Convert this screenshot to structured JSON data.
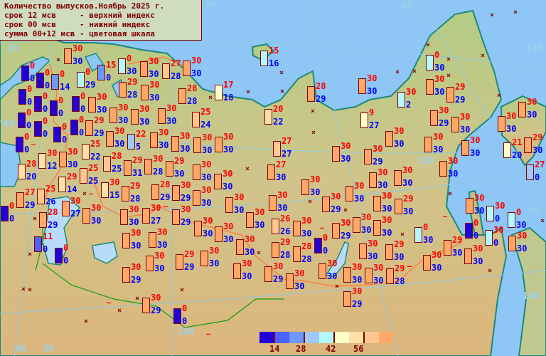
{
  "legend": {
    "title": "Количество выпусков.Ноябрь 2025 г.",
    "line1": "срок 12 мсв     - верхний индекс",
    "line2": "срок 00 мсв     - нижний индекс",
    "line3": "сумма 00+12 мсв - цветовая шкала"
  },
  "color_scale": {
    "colors": [
      "#2200d8",
      "#4a62ff",
      "#6e98ff",
      "#a0c8ff",
      "#b4f8ff",
      "#ffffc8",
      "#ffe0a8",
      "#ffc890",
      "#ffa868"
    ],
    "labels": [
      "14",
      "28",
      "42",
      "56"
    ]
  },
  "colors": {
    "ocean": "#8ec6f6",
    "land_north": "#b4cc84",
    "land_south": "#dcb67c",
    "border": "#ff8040",
    "outline": "#800000",
    "upper_text": "#ff0000",
    "lower_text": "#0000ff"
  },
  "graticule_labels": [
    "20",
    "40",
    "30",
    "60",
    "100",
    "70",
    "60",
    "180",
    "140",
    "40",
    "140"
  ],
  "no_data_markers": {
    "cross": "×",
    "dash": "–"
  },
  "stations": [
    {
      "upper": "30",
      "lower": "30"
    },
    {
      "upper": "0",
      "lower": "0"
    },
    {
      "upper": "0",
      "lower": "0"
    },
    {
      "upper": "0",
      "lower": "14"
    },
    {
      "upper": "0",
      "lower": "29"
    },
    {
      "upper": "15",
      "lower": "0"
    },
    {
      "upper": "0",
      "lower": "30"
    },
    {
      "upper": "0",
      "lower": "0"
    },
    {
      "upper": "0",
      "lower": "0"
    },
    {
      "upper": "0",
      "lower": "0"
    },
    {
      "upper": "30",
      "lower": "30"
    },
    {
      "upper": "29",
      "lower": "28"
    },
    {
      "upper": "0",
      "lower": "0"
    },
    {
      "upper": "0",
      "lower": "0"
    },
    {
      "upper": "29",
      "lower": "29"
    },
    {
      "upper": "30",
      "lower": "30"
    },
    {
      "upper": "0",
      "lower": "0"
    },
    {
      "upper": "0",
      "lower": "0"
    },
    {
      "upper": "0",
      "lower": "0"
    },
    {
      "upper": "30",
      "lower": "30"
    },
    {
      "upper": "25",
      "lower": "22"
    },
    {
      "upper": "30",
      "lower": "30"
    },
    {
      "upper": "30",
      "lower": "30"
    },
    {
      "upper": "30",
      "lower": "30"
    },
    {
      "upper": "28",
      "lower": "25"
    },
    {
      "upper": "22",
      "lower": "5"
    },
    {
      "upper": "0",
      "lower": "0"
    },
    {
      "upper": "25",
      "lower": "25"
    },
    {
      "upper": "30",
      "lower": "12"
    },
    {
      "upper": "28",
      "lower": "20"
    },
    {
      "upper": "29",
      "lower": "31"
    },
    {
      "upper": "30",
      "lower": "15"
    },
    {
      "upper": "30",
      "lower": "28"
    },
    {
      "upper": "29",
      "lower": "14"
    },
    {
      "upper": "29",
      "lower": "28"
    },
    {
      "upper": "25",
      "lower": "26"
    },
    {
      "upper": "27",
      "lower": "29"
    },
    {
      "upper": "30",
      "lower": "27"
    },
    {
      "upper": "30",
      "lower": "30"
    },
    {
      "upper": "0",
      "lower": "0"
    },
    {
      "upper": "28",
      "lower": "29"
    },
    {
      "upper": "30",
      "lower": "30"
    },
    {
      "upper": "30",
      "lower": "30"
    },
    {
      "upper": "11",
      "lower": "0"
    },
    {
      "upper": "0",
      "lower": "0"
    },
    {
      "upper": "27",
      "lower": "28"
    },
    {
      "upper": "30",
      "lower": "30"
    },
    {
      "upper": "30",
      "lower": "30"
    },
    {
      "upper": "28",
      "lower": "28"
    },
    {
      "upper": "17",
      "lower": "18"
    },
    {
      "upper": "30",
      "lower": "30"
    },
    {
      "upper": "25",
      "lower": "24"
    },
    {
      "upper": "30",
      "lower": "30"
    },
    {
      "upper": "30",
      "lower": "30"
    },
    {
      "upper": "30",
      "lower": "30"
    },
    {
      "upper": "29",
      "lower": "30"
    },
    {
      "upper": "30",
      "lower": "30"
    },
    {
      "upper": "28",
      "lower": "29"
    },
    {
      "upper": "30",
      "lower": "27"
    },
    {
      "upper": "30",
      "lower": "29"
    },
    {
      "upper": "30",
      "lower": "30"
    },
    {
      "upper": "30",
      "lower": "30"
    },
    {
      "upper": "30",
      "lower": "30"
    },
    {
      "upper": "30",
      "lower": "29"
    },
    {
      "upper": "30",
      "lower": "30"
    },
    {
      "upper": "30",
      "lower": "30"
    },
    {
      "upper": "30",
      "lower": "30"
    },
    {
      "upper": "30",
      "lower": "30"
    },
    {
      "upper": "30",
      "lower": "30"
    },
    {
      "upper": "30",
      "lower": "30"
    },
    {
      "upper": "30",
      "lower": "30"
    },
    {
      "upper": "30",
      "lower": "30"
    },
    {
      "upper": "29",
      "lower": "29"
    },
    {
      "upper": "30",
      "lower": "29"
    },
    {
      "upper": "30",
      "lower": "29"
    },
    {
      "upper": "30",
      "lower": "30"
    },
    {
      "upper": "15",
      "lower": "16"
    },
    {
      "upper": "28",
      "lower": "29"
    },
    {
      "upper": "30",
      "lower": "30"
    },
    {
      "upper": "20",
      "lower": "22"
    },
    {
      "upper": "9",
      "lower": "27"
    },
    {
      "upper": "27",
      "lower": "27"
    },
    {
      "upper": "30",
      "lower": "30"
    },
    {
      "upper": "30",
      "lower": "29"
    },
    {
      "upper": "30",
      "lower": "30"
    },
    {
      "upper": "27",
      "lower": "30"
    },
    {
      "upper": "30",
      "lower": "30"
    },
    {
      "upper": "30",
      "lower": "30"
    },
    {
      "upper": "30",
      "lower": "30"
    },
    {
      "upper": "30",
      "lower": "30"
    },
    {
      "upper": "30",
      "lower": "30"
    },
    {
      "upper": "30",
      "lower": "30"
    },
    {
      "upper": "29",
      "lower": "30"
    },
    {
      "upper": "26",
      "lower": "26"
    },
    {
      "upper": "30",
      "lower": "30"
    },
    {
      "upper": "30",
      "lower": "29"
    },
    {
      "upper": "30",
      "lower": "29"
    },
    {
      "upper": "30",
      "lower": "30"
    },
    {
      "upper": "30",
      "lower": "30"
    },
    {
      "upper": "29",
      "lower": "28"
    },
    {
      "upper": "30",
      "lower": "29"
    },
    {
      "upper": "0",
      "lower": "0"
    },
    {
      "upper": "28",
      "lower": "28"
    },
    {
      "upper": "30",
      "lower": "30"
    },
    {
      "upper": "29",
      "lower": "30"
    },
    {
      "upper": "30",
      "lower": "30"
    },
    {
      "upper": "30",
      "lower": "30"
    },
    {
      "upper": "30",
      "lower": "30"
    },
    {
      "upper": "30",
      "lower": "30"
    },
    {
      "upper": "29",
      "lower": "28"
    },
    {
      "upper": "0",
      "lower": "0"
    },
    {
      "upper": "30",
      "lower": "29"
    },
    {
      "upper": "0",
      "lower": "30"
    },
    {
      "upper": "30",
      "lower": "30"
    },
    {
      "upper": "29",
      "lower": "29"
    },
    {
      "upper": "30",
      "lower": "2"
    },
    {
      "upper": "30",
      "lower": "29"
    },
    {
      "upper": "30",
      "lower": "30"
    },
    {
      "upper": "30",
      "lower": "30"
    },
    {
      "upper": "30",
      "lower": "30"
    },
    {
      "upper": "30",
      "lower": "30"
    },
    {
      "upper": "30",
      "lower": "30"
    },
    {
      "upper": "21",
      "lower": "20"
    },
    {
      "upper": "29",
      "lower": "30"
    },
    {
      "upper": "27",
      "lower": "0"
    },
    {
      "upper": "30",
      "lower": "30"
    },
    {
      "upper": "30",
      "lower": "30"
    },
    {
      "upper": "30",
      "lower": "0"
    },
    {
      "upper": "0",
      "lower": "30"
    },
    {
      "upper": "0",
      "lower": "30"
    },
    {
      "upper": "0",
      "lower": "0"
    },
    {
      "upper": "30",
      "lower": "0"
    },
    {
      "upper": "30",
      "lower": "30"
    },
    {
      "upper": "29",
      "lower": "30"
    },
    {
      "upper": "30",
      "lower": "30"
    },
    {
      "upper": "30",
      "lower": "30"
    }
  ]
}
